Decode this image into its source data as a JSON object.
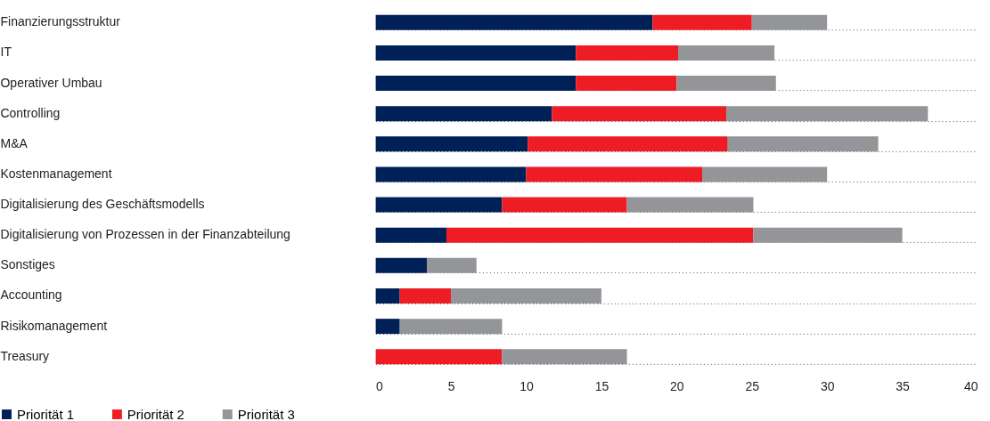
{
  "chart_data": {
    "type": "bar",
    "orientation": "horizontal",
    "stacked": true,
    "categories": [
      "Finanzierungsstruktur",
      "IT",
      "Operativer Umbau",
      "Controlling",
      "M&A",
      "Kostenmanagement",
      "Digitalisierung des Geschäftsmodells",
      "Digitalisierung von Prozessen in der Finanzabteilung",
      "Sonstiges",
      "Accounting",
      "Risikomanagement",
      "Treasury"
    ],
    "series": [
      {
        "name": "Priorität 1",
        "color": "#002157",
        "values": [
          18.4,
          13.3,
          13.3,
          11.7,
          10.1,
          10.0,
          8.4,
          4.7,
          3.4,
          1.6,
          1.6,
          0
        ]
      },
      {
        "name": "Priorität 2",
        "color": "#ee1c25",
        "values": [
          6.6,
          6.8,
          6.7,
          11.6,
          13.3,
          11.7,
          8.3,
          20.4,
          0,
          3.4,
          0,
          8.4
        ]
      },
      {
        "name": "Priorität 3",
        "color": "#949599",
        "values": [
          5.0,
          6.4,
          6.6,
          13.4,
          10.0,
          8.3,
          8.4,
          9.9,
          3.3,
          10.0,
          6.8,
          8.3
        ]
      }
    ],
    "xlim": [
      0,
      40
    ],
    "xticks": [
      0,
      5,
      10,
      15,
      20,
      25,
      30,
      35,
      40
    ],
    "grid": "y",
    "legend": "bottom left"
  }
}
